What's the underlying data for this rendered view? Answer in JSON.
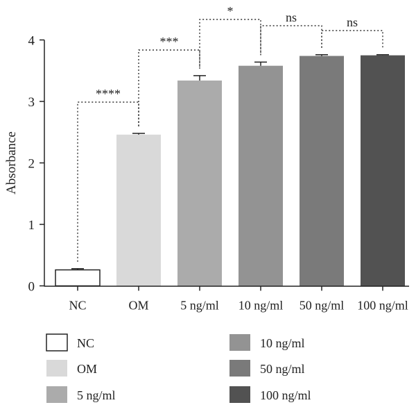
{
  "chart_data": {
    "type": "bar",
    "ylabel": "Absorbance",
    "ylim": [
      0,
      4
    ],
    "yticks": [
      0,
      1,
      2,
      3,
      4
    ],
    "categories": [
      "NC",
      "OM",
      "5 ng/ml",
      "10 ng/ml",
      "50 ng/ml",
      "100 ng/ml"
    ],
    "values": [
      0.26,
      2.46,
      3.34,
      3.58,
      3.74,
      3.75
    ],
    "errors": [
      0.02,
      0.02,
      0.08,
      0.06,
      0.02,
      0.01
    ],
    "colors": [
      "#ffffff",
      "#d9d9d9",
      "#ababab",
      "#939393",
      "#7a7a7a",
      "#525252"
    ],
    "significance": [
      {
        "from": "NC",
        "to": "OM",
        "label": "****"
      },
      {
        "from": "OM",
        "to": "5 ng/ml",
        "label": "***"
      },
      {
        "from": "5 ng/ml",
        "to": "10 ng/ml",
        "label": "*"
      },
      {
        "from": "10 ng/ml",
        "to": "50 ng/ml",
        "label": "ns"
      },
      {
        "from": "50 ng/ml",
        "to": "100 ng/ml",
        "label": "ns"
      }
    ],
    "legend": [
      "NC",
      "OM",
      "5 ng/ml",
      "10 ng/ml",
      "50 ng/ml",
      "100 ng/ml"
    ],
    "legend_position": "bottom",
    "grid": false
  }
}
